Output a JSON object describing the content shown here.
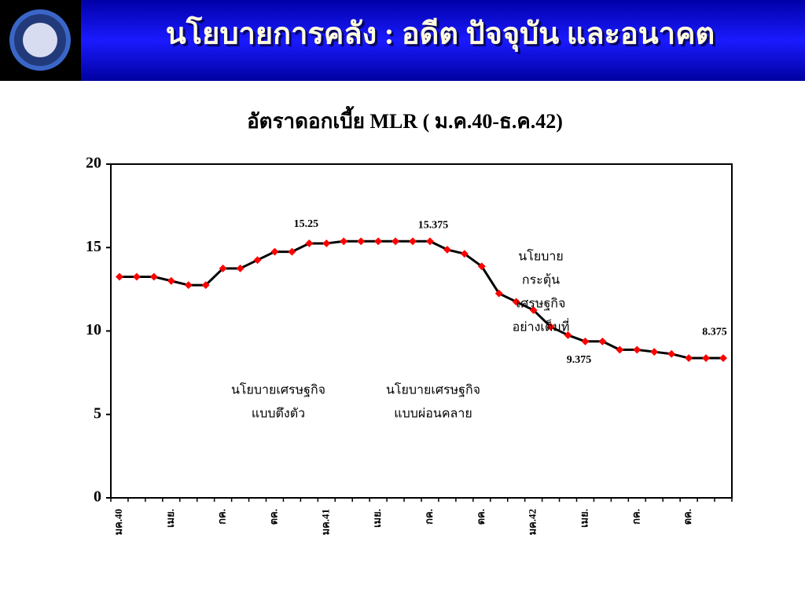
{
  "header": {
    "title": "นโยบายการคลัง : อดีต ปัจจุบัน และอนาคต"
  },
  "chart_data": {
    "type": "line",
    "title": "อัตราดอกเบี้ย MLR ( ม.ค.40-ธ.ค.42)",
    "categories": [
      "มค.40",
      null,
      null,
      "เมย.",
      null,
      null,
      "กค.",
      null,
      null,
      "ตค.",
      null,
      null,
      "มค.41",
      null,
      null,
      "เมย.",
      null,
      null,
      "กค.",
      null,
      null,
      "ตค.",
      null,
      null,
      "มค.42",
      null,
      null,
      "เมย.",
      null,
      null,
      "กค.",
      null,
      null,
      "ตค.",
      null,
      null
    ],
    "series": [
      {
        "name": "MLR",
        "color": "#000000",
        "marker_color": "#ff0000",
        "values": [
          13.25,
          13.25,
          13.25,
          13.0,
          12.75,
          12.75,
          13.75,
          13.75,
          14.25,
          14.75,
          14.75,
          15.25,
          15.25,
          15.375,
          15.375,
          15.375,
          15.375,
          15.375,
          15.375,
          14.875,
          14.625,
          13.875,
          12.25,
          11.75,
          11.25,
          10.25,
          9.75,
          9.375,
          9.375,
          8.875,
          8.875,
          8.75,
          8.625,
          8.375,
          8.375,
          8.375
        ]
      }
    ],
    "ylim": [
      0,
      20
    ],
    "yticks": [
      0,
      5,
      10,
      15,
      20
    ],
    "grid": false,
    "annotations": [
      [
        "นโยบายเศรษฐกิจ",
        "แบบตึงตัว"
      ],
      [
        "นโยบายเศรษฐกิจ",
        "แบบผ่อนคลาย"
      ],
      [
        "นโยบาย",
        "กระตุ้น",
        "เศรษฐกิจ",
        "อย่างเต็มที่"
      ]
    ]
  }
}
